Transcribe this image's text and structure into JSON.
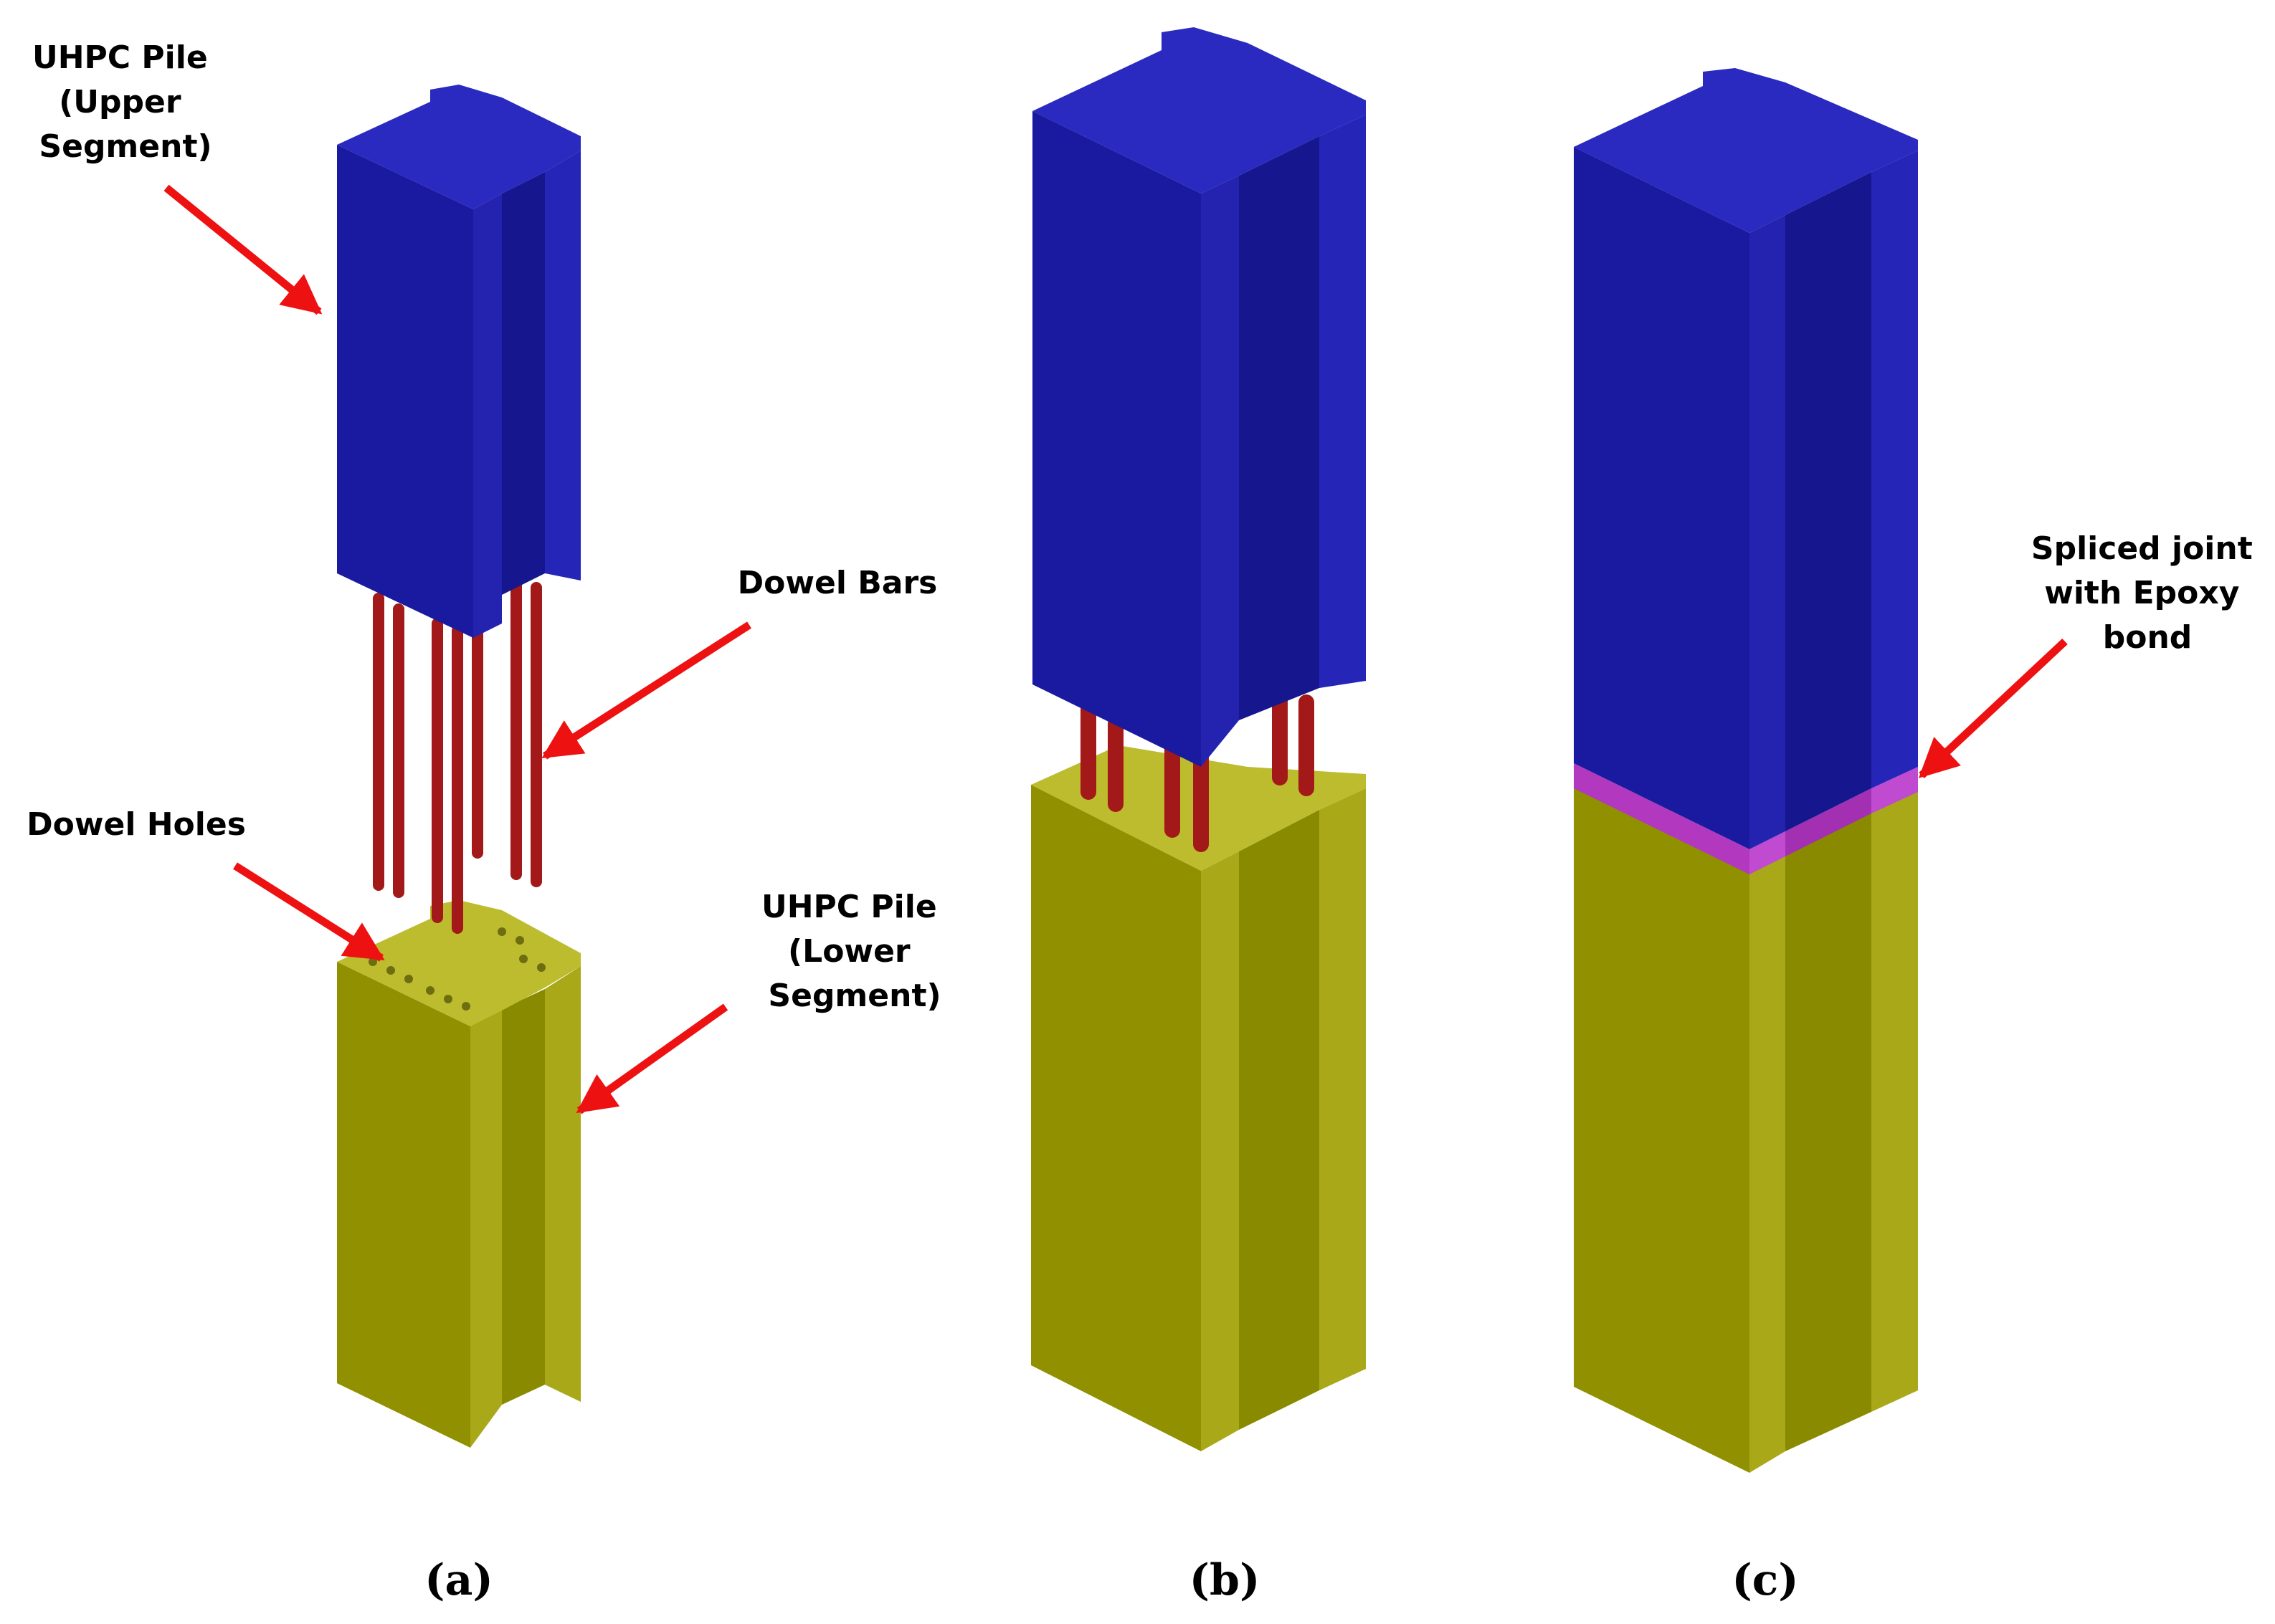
{
  "labels": {
    "upper_segment": [
      "UHPC Pile",
      "(Upper",
      "Segment)"
    ],
    "dowel_bars": "Dowel Bars",
    "dowel_holes": "Dowel Holes",
    "lower_segment": [
      "UHPC Pile",
      "(Lower",
      "Segment)"
    ],
    "spliced_joint": [
      "Spliced joint",
      "with Epoxy",
      "bond"
    ]
  },
  "captions": {
    "a": "(a)",
    "b": "(b)",
    "c": "(c)"
  },
  "colors": {
    "upper_front": "#1a1aa0",
    "upper_top": "#2525b8",
    "upper_side": "#14148a",
    "lower_front": "#909000",
    "lower_side": "#a8a818",
    "lower_top": "#bcbc2e",
    "dowel": "#a31818",
    "epoxy": "#b238c0",
    "arrow": "#ee1111"
  }
}
